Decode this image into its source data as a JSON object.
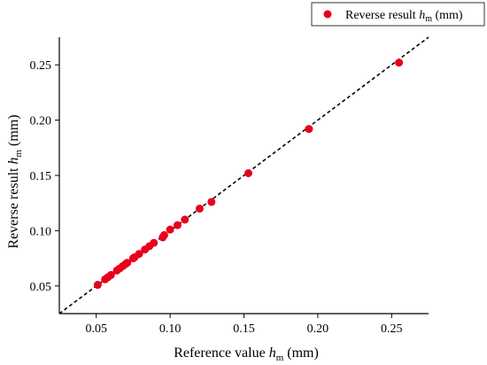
{
  "chart_data": {
    "type": "scatter",
    "xlabel": {
      "prefix": "Reference value  ",
      "var": "h",
      "sub": "m",
      "suffix": " (mm)"
    },
    "ylabel": {
      "prefix": "Reverse result ",
      "var": "h",
      "sub": "m",
      "suffix": " (mm)"
    },
    "xlim": [
      0.025,
      0.275
    ],
    "ylim": [
      0.025,
      0.275
    ],
    "x_ticks": [
      0.05,
      0.1,
      0.15,
      0.2,
      0.25
    ],
    "y_ticks": [
      0.05,
      0.1,
      0.15,
      0.2,
      0.25
    ],
    "x_tick_labels": [
      "0.05",
      "0.10",
      "0.15",
      "0.20",
      "0.25"
    ],
    "y_tick_labels": [
      "0.05",
      "0.10",
      "0.15",
      "0.20",
      "0.25"
    ],
    "grid": false,
    "legend": {
      "placement": "top-right",
      "entries": [
        {
          "prefix": "Reverse result ",
          "var": "h",
          "sub": "m",
          "suffix": " (mm)"
        }
      ]
    },
    "reference_line": {
      "style": "dashed",
      "x": [
        0.025,
        0.275
      ],
      "y": [
        0.025,
        0.275
      ]
    },
    "series": [
      {
        "color": "#e8001c",
        "x": [
          0.051,
          0.056,
          0.058,
          0.06,
          0.064,
          0.066,
          0.068,
          0.07,
          0.071,
          0.075,
          0.076,
          0.079,
          0.083,
          0.086,
          0.089,
          0.095,
          0.096,
          0.1,
          0.105,
          0.11,
          0.12,
          0.128,
          0.153,
          0.194,
          0.255
        ],
        "y": [
          0.051,
          0.056,
          0.058,
          0.06,
          0.064,
          0.066,
          0.068,
          0.07,
          0.071,
          0.075,
          0.076,
          0.079,
          0.083,
          0.086,
          0.089,
          0.094,
          0.096,
          0.101,
          0.105,
          0.11,
          0.12,
          0.126,
          0.152,
          0.192,
          0.252
        ]
      }
    ]
  }
}
